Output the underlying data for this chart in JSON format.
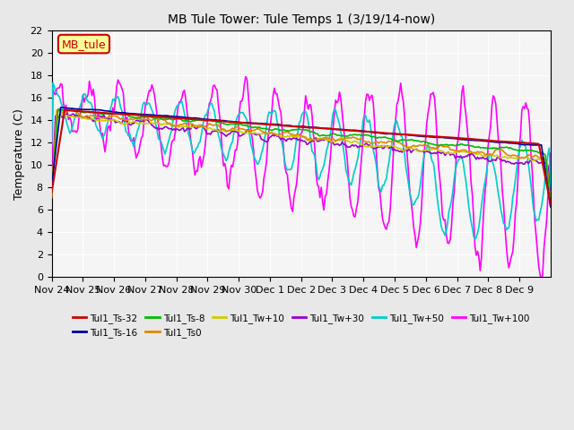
{
  "title": "MB Tule Tower: Tule Temps 1 (3/19/14-now)",
  "ylabel": "Temperature (C)",
  "ylim": [
    0,
    22
  ],
  "yticks": [
    0,
    2,
    4,
    6,
    8,
    10,
    12,
    14,
    16,
    18,
    20,
    22
  ],
  "xlabel_dates": [
    "Nov 24",
    "Nov 25",
    "Nov 26",
    "Nov 27",
    "Nov 28",
    "Nov 29",
    "Nov 30",
    "Dec 1",
    "Dec 2",
    "Dec 3",
    "Dec 4",
    "Dec 5",
    "Dec 6",
    "Dec 7",
    "Dec 8",
    "Dec 9"
  ],
  "n_days": 16,
  "legend_label": "MB_tule",
  "series_legend": [
    {
      "label": "Tul1_Ts-32",
      "color": "#cc0000",
      "lw": 1.5
    },
    {
      "label": "Tul1_Ts-16",
      "color": "#000099",
      "lw": 1.2
    },
    {
      "label": "Tul1_Ts-8",
      "color": "#00bb00",
      "lw": 1.2
    },
    {
      "label": "Tul1_Ts0",
      "color": "#dd8800",
      "lw": 1.2
    },
    {
      "label": "Tul1_Tw+10",
      "color": "#cccc00",
      "lw": 1.2
    },
    {
      "label": "Tul1_Tw+30",
      "color": "#9900cc",
      "lw": 1.2
    },
    {
      "label": "Tul1_Tw+50",
      "color": "#00cccc",
      "lw": 1.2
    },
    {
      "label": "Tul1_Tw+100",
      "color": "#ff00ff",
      "lw": 1.2
    }
  ],
  "bg_color": "#e8e8e8",
  "plot_bg": "#f5f5f5"
}
